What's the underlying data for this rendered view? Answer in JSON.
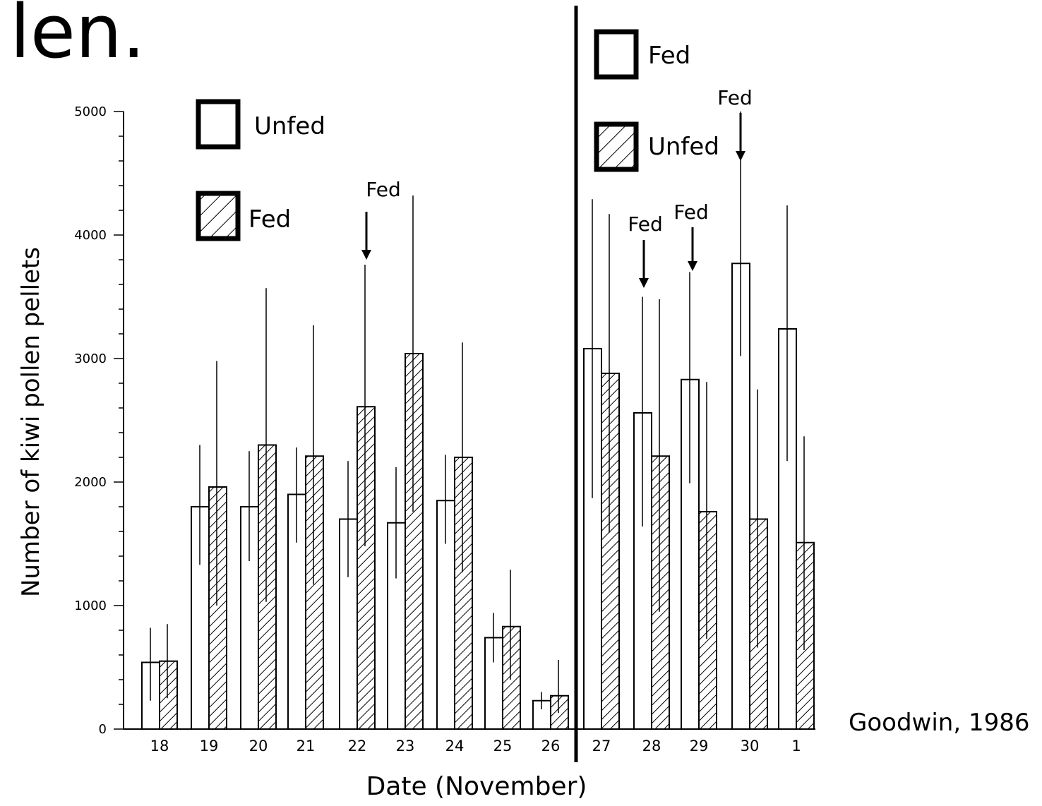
{
  "slide": {
    "title_fragment": "len.",
    "credit": "Goodwin, 1986"
  },
  "chart_data": {
    "type": "bar",
    "xlabel": "Date (November)",
    "ylabel": "Number of kiwi pollen pellets",
    "ylim": [
      0,
      5000
    ],
    "yticks": [
      "0",
      "1000",
      "2000",
      "3000",
      "4000",
      "5000"
    ],
    "grid": false,
    "categories": [
      "18",
      "19",
      "20",
      "21",
      "22",
      "23",
      "24",
      "25",
      "26",
      "27",
      "28",
      "29",
      "30",
      "1"
    ],
    "panels": [
      {
        "legend": [
          {
            "label": "Unfed",
            "pattern": "plain"
          },
          {
            "label": "Fed",
            "pattern": "hatched"
          }
        ],
        "categories": [
          "18",
          "19",
          "20",
          "21",
          "22",
          "23",
          "24",
          "25",
          "26"
        ]
      },
      {
        "legend": [
          {
            "label": "Fed",
            "pattern": "plain"
          },
          {
            "label": "Unfed",
            "pattern": "hatched"
          }
        ],
        "categories": [
          "27",
          "28",
          "29",
          "30",
          "1"
        ]
      }
    ],
    "series": [
      {
        "pattern": "plain",
        "values": [
          540,
          1800,
          1800,
          1900,
          1700,
          1670,
          1850,
          740,
          230,
          3080,
          2560,
          2830,
          3770,
          3240
        ],
        "error_upper": [
          820,
          2300,
          2250,
          2280,
          2170,
          2120,
          2220,
          940,
          300,
          4290,
          3500,
          3700,
          5000,
          4240
        ],
        "error_lower": [
          230,
          1330,
          1360,
          1510,
          1230,
          1220,
          1500,
          540,
          160,
          1870,
          1640,
          1990,
          3020,
          2170
        ]
      },
      {
        "pattern": "hatched",
        "values": [
          550,
          1960,
          2300,
          2210,
          2610,
          3040,
          2200,
          830,
          270,
          2880,
          2210,
          1760,
          1700,
          1510
        ],
        "error_upper": [
          850,
          2980,
          3570,
          3270,
          3760,
          4320,
          3130,
          1290,
          560,
          4170,
          3480,
          2810,
          2750,
          2370
        ],
        "error_lower": [
          250,
          1000,
          1030,
          1170,
          1480,
          1760,
          1270,
          400,
          130,
          1590,
          950,
          730,
          660,
          640
        ]
      }
    ],
    "annotations": [
      {
        "text": "Fed",
        "category": "22"
      },
      {
        "text": "Fed",
        "category": "28"
      },
      {
        "text": "Fed",
        "category": "29"
      },
      {
        "text": "Fed",
        "category": "30"
      }
    ]
  }
}
